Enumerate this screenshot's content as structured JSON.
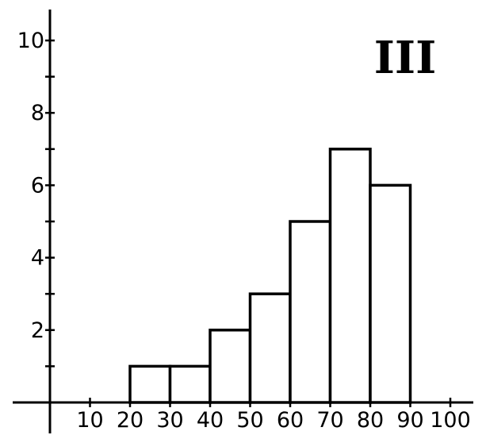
{
  "chart_data": {
    "type": "bar",
    "title": "III",
    "xlabel": "",
    "ylabel": "",
    "bins": [
      {
        "start": 20,
        "end": 30,
        "value": 1
      },
      {
        "start": 30,
        "end": 40,
        "value": 1
      },
      {
        "start": 40,
        "end": 50,
        "value": 2
      },
      {
        "start": 50,
        "end": 60,
        "value": 3
      },
      {
        "start": 60,
        "end": 70,
        "value": 5
      },
      {
        "start": 70,
        "end": 80,
        "value": 7
      },
      {
        "start": 80,
        "end": 90,
        "value": 6
      }
    ],
    "x_ticks": [
      "10",
      "20",
      "30",
      "40",
      "50",
      "60",
      "70",
      "80",
      "90",
      "100"
    ],
    "y_ticks": [
      "2",
      "4",
      "6",
      "8",
      "10"
    ],
    "xlim": [
      0,
      100
    ],
    "ylim": [
      0,
      10
    ],
    "grid": false
  }
}
